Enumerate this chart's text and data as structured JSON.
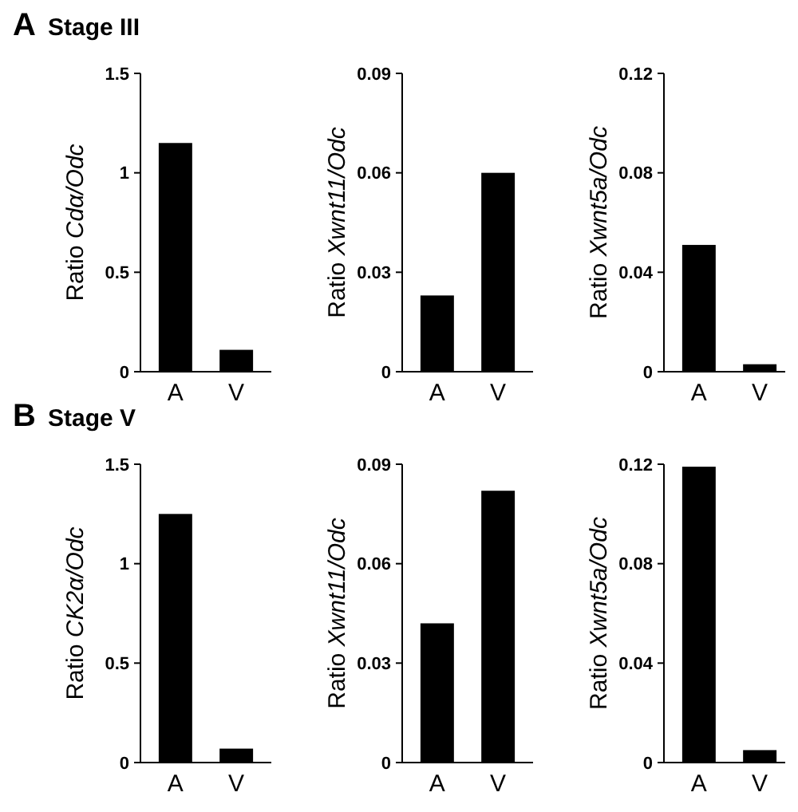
{
  "chart_data": [
    {
      "type": "bar",
      "title": "Stage III",
      "annotations": [
        "A"
      ],
      "ylabel": "Ratio Cdα/Odc",
      "categories": [
        "A",
        "V"
      ],
      "values": [
        1.15,
        0.11
      ],
      "color": "#000000",
      "ylim": [
        0,
        1.5
      ],
      "yticks": [
        0,
        0.5,
        1,
        1.5
      ]
    },
    {
      "type": "bar",
      "ylabel": "Ratio Xwnt11/Odc",
      "categories": [
        "A",
        "V"
      ],
      "values": [
        0.023,
        0.06
      ],
      "color": "#000000",
      "ylim": [
        0,
        0.09
      ],
      "yticks": [
        0,
        0.03,
        0.06,
        0.09
      ]
    },
    {
      "type": "bar",
      "ylabel": "Ratio Xwnt5a/Odc",
      "categories": [
        "A",
        "V"
      ],
      "values": [
        0.051,
        0.003
      ],
      "color": "#000000",
      "ylim": [
        0,
        0.12
      ],
      "yticks": [
        0,
        0.04,
        0.08,
        0.12
      ]
    },
    {
      "type": "bar",
      "title": "Stage V",
      "annotations": [
        "B"
      ],
      "ylabel": "Ratio CK2α/Odc",
      "categories": [
        "A",
        "V"
      ],
      "values": [
        1.25,
        0.07
      ],
      "color": "#000000",
      "ylim": [
        0,
        1.5
      ],
      "yticks": [
        0,
        0.5,
        1,
        1.5
      ]
    },
    {
      "type": "bar",
      "ylabel": "Ratio Xwnt11/Odc",
      "categories": [
        "A",
        "V"
      ],
      "values": [
        0.042,
        0.082
      ],
      "color": "#000000",
      "ylim": [
        0,
        0.09
      ],
      "yticks": [
        0,
        0.03,
        0.06,
        0.09
      ]
    },
    {
      "type": "bar",
      "ylabel": "Ratio Xwnt5a/Odc",
      "categories": [
        "A",
        "V"
      ],
      "values": [
        0.119,
        0.005
      ],
      "color": "#000000",
      "ylim": [
        0,
        0.12
      ],
      "yticks": [
        0,
        0.04,
        0.08,
        0.12
      ]
    }
  ]
}
